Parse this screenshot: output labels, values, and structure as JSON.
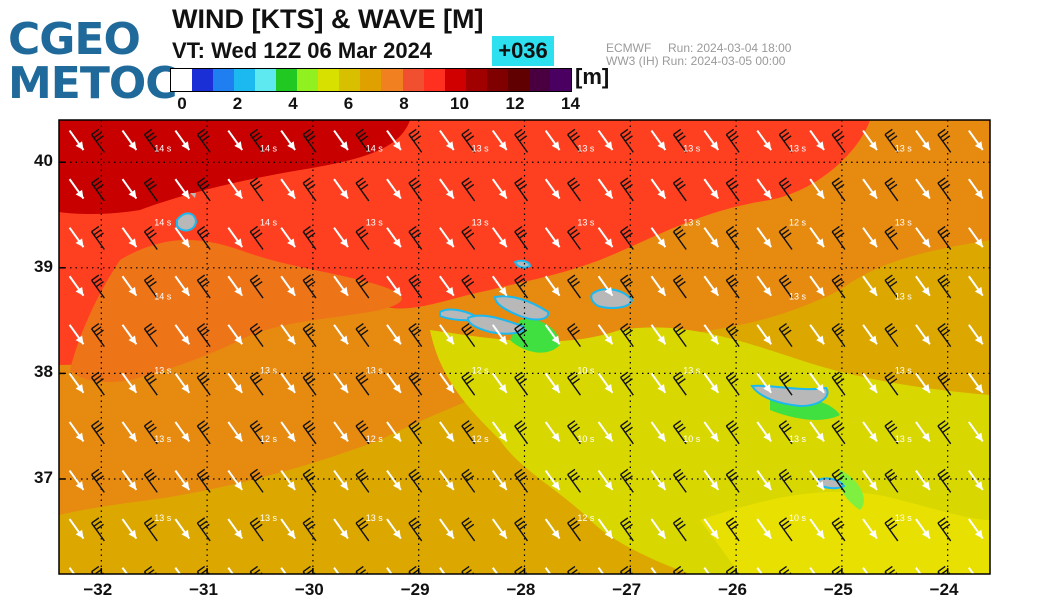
{
  "logo": {
    "line1": "CGEO",
    "line2": "METOC"
  },
  "title": "WIND [KTS] & WAVE [M]",
  "valid_time": "VT: Wed 12Z 06 Mar 2024",
  "forecast_lead": "+036",
  "runs": [
    "ECMWF     Run: 2024-03-04 18:00",
    "WW3 (IH) Run: 2024-03-05 00:00"
  ],
  "colorbar": {
    "unit": "[m]",
    "colors": [
      "#ffffff",
      "#1b2fd6",
      "#1f7ef0",
      "#1cb8f0",
      "#5ee8f0",
      "#22c822",
      "#90f020",
      "#d8e000",
      "#d8c000",
      "#e0a000",
      "#f08020",
      "#f05030",
      "#ff3020",
      "#d00000",
      "#a00000",
      "#800000",
      "#600000",
      "#4a0040",
      "#4a0060"
    ],
    "tick_labels": [
      "0",
      "2",
      "4",
      "6",
      "8",
      "10",
      "12",
      "14"
    ]
  },
  "map": {
    "longitude_ticks": [
      "−32",
      "−31",
      "−30",
      "−29",
      "−28",
      "−27",
      "−26",
      "−25",
      "−24"
    ],
    "latitude_ticks": [
      "40",
      "39",
      "38",
      "37"
    ],
    "lon_range": [
      -32.4,
      -23.6
    ],
    "lat_range": [
      36.1,
      40.4
    ],
    "wind_direction": "NW",
    "period_labels": [
      {
        "lon": -31.5,
        "lat": 40.1,
        "text": "14 s"
      },
      {
        "lon": -30.5,
        "lat": 40.1,
        "text": "14 s"
      },
      {
        "lon": -29.5,
        "lat": 40.1,
        "text": "14 s"
      },
      {
        "lon": -28.5,
        "lat": 40.1,
        "text": "13 s"
      },
      {
        "lon": -27.5,
        "lat": 40.1,
        "text": "13 s"
      },
      {
        "lon": -26.5,
        "lat": 40.1,
        "text": "13 s"
      },
      {
        "lon": -25.5,
        "lat": 40.1,
        "text": "13 s"
      },
      {
        "lon": -24.5,
        "lat": 40.1,
        "text": "13 s"
      },
      {
        "lon": -31.5,
        "lat": 39.4,
        "text": "14 s"
      },
      {
        "lon": -30.5,
        "lat": 39.4,
        "text": "14 s"
      },
      {
        "lon": -29.5,
        "lat": 39.4,
        "text": "13 s"
      },
      {
        "lon": -28.5,
        "lat": 39.4,
        "text": "13 s"
      },
      {
        "lon": -27.5,
        "lat": 39.4,
        "text": "13 s"
      },
      {
        "lon": -26.5,
        "lat": 39.4,
        "text": "13 s"
      },
      {
        "lon": -25.5,
        "lat": 39.4,
        "text": "12 s"
      },
      {
        "lon": -24.5,
        "lat": 39.4,
        "text": "13 s"
      },
      {
        "lon": -31.5,
        "lat": 38.7,
        "text": "14 s"
      },
      {
        "lon": -25.5,
        "lat": 38.7,
        "text": "13 s"
      },
      {
        "lon": -24.5,
        "lat": 38.7,
        "text": "13 s"
      },
      {
        "lon": -31.5,
        "lat": 38.0,
        "text": "13 s"
      },
      {
        "lon": -30.5,
        "lat": 38.0,
        "text": "13 s"
      },
      {
        "lon": -29.5,
        "lat": 38.0,
        "text": "13 s"
      },
      {
        "lon": -28.5,
        "lat": 38.0,
        "text": "12 s"
      },
      {
        "lon": -27.5,
        "lat": 38.0,
        "text": "10 s"
      },
      {
        "lon": -26.5,
        "lat": 38.0,
        "text": "13 s"
      },
      {
        "lon": -24.5,
        "lat": 38.0,
        "text": "13 s"
      },
      {
        "lon": -31.5,
        "lat": 37.35,
        "text": "13 s"
      },
      {
        "lon": -30.5,
        "lat": 37.35,
        "text": "12 s"
      },
      {
        "lon": -29.5,
        "lat": 37.35,
        "text": "12 s"
      },
      {
        "lon": -28.5,
        "lat": 37.35,
        "text": "12 s"
      },
      {
        "lon": -27.5,
        "lat": 37.35,
        "text": "10 s"
      },
      {
        "lon": -26.5,
        "lat": 37.35,
        "text": "10 s"
      },
      {
        "lon": -25.5,
        "lat": 37.35,
        "text": "13 s"
      },
      {
        "lon": -24.5,
        "lat": 37.35,
        "text": "13 s"
      },
      {
        "lon": -31.5,
        "lat": 36.6,
        "text": "13 s"
      },
      {
        "lon": -30.5,
        "lat": 36.6,
        "text": "13 s"
      },
      {
        "lon": -29.5,
        "lat": 36.6,
        "text": "13 s"
      },
      {
        "lon": -27.5,
        "lat": 36.6,
        "text": "12 s"
      },
      {
        "lon": -25.5,
        "lat": 36.6,
        "text": "10 s"
      },
      {
        "lon": -24.5,
        "lat": 36.6,
        "text": "13 s"
      }
    ]
  }
}
